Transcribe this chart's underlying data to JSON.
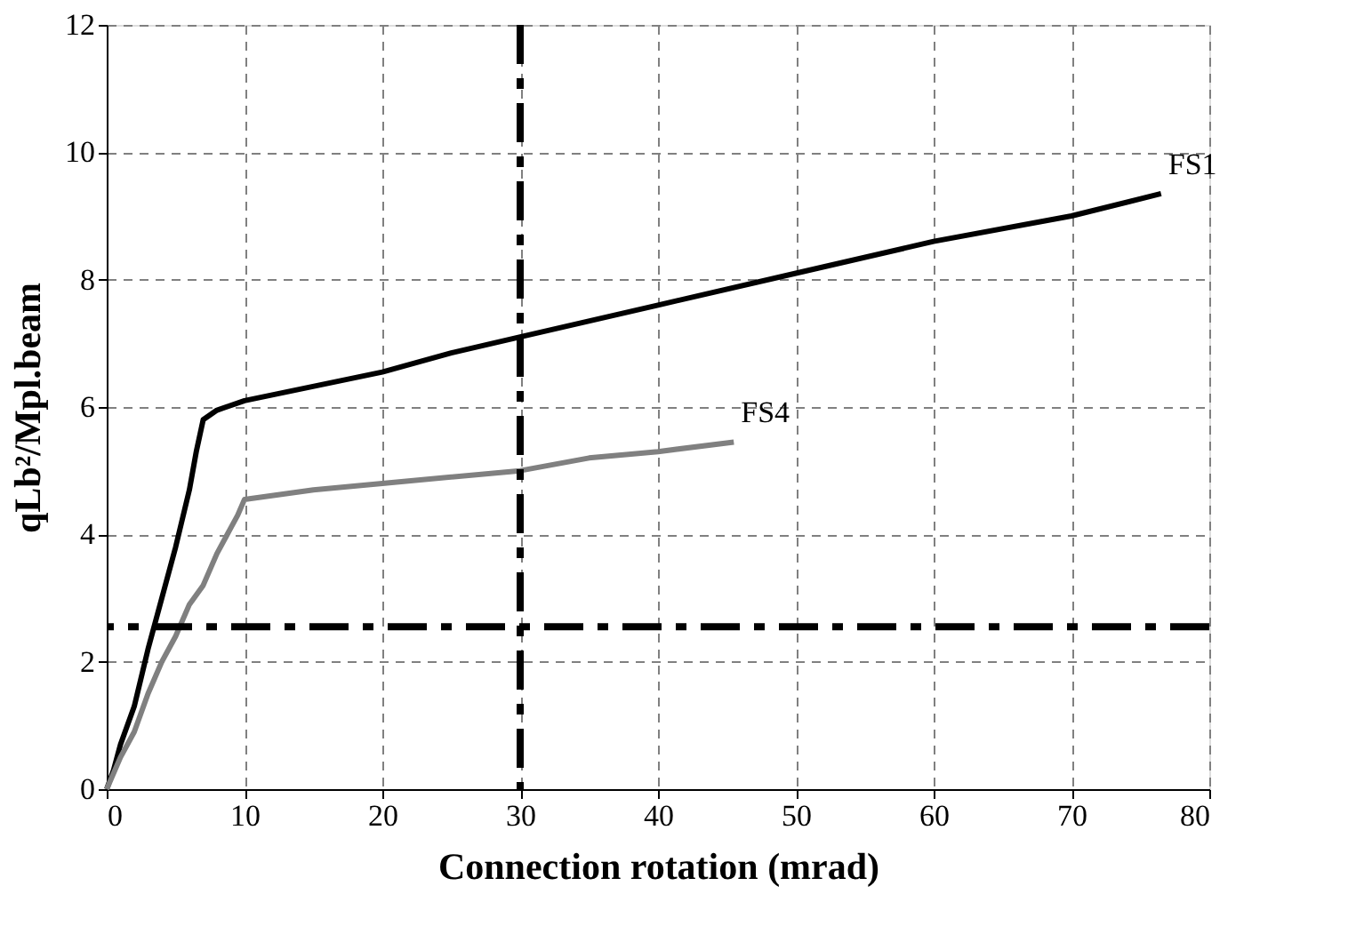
{
  "chart_data": {
    "type": "line",
    "xlabel": "Connection rotation (mrad)",
    "ylabel": "qLb²/Mpl.beam",
    "xlim": [
      0,
      80
    ],
    "xticks": [
      0,
      10,
      20,
      30,
      40,
      50,
      60,
      70,
      80
    ],
    "ylim": [
      0,
      12
    ],
    "yticks": [
      0,
      2,
      4,
      6,
      8,
      10,
      12
    ],
    "grid": true,
    "marker": "none",
    "line_style": "solid",
    "series": [
      {
        "name": "FS1",
        "color": "#000000",
        "x": [
          0,
          0.5,
          1,
          2,
          3,
          4,
          5,
          6,
          6.5,
          7,
          8,
          10,
          20,
          25,
          30,
          40,
          50,
          60,
          70,
          76.5
        ],
        "values": [
          0,
          0.3,
          0.7,
          1.3,
          2.2,
          3.0,
          3.8,
          4.7,
          5.3,
          5.8,
          5.95,
          6.1,
          6.55,
          6.85,
          7.1,
          7.6,
          8.1,
          8.6,
          9.0,
          9.35
        ]
      },
      {
        "name": "FS4",
        "color": "#808080",
        "x": [
          0,
          1,
          2,
          3,
          4,
          5,
          6,
          7,
          8,
          9,
          9.5,
          10,
          15,
          20,
          30,
          35,
          40,
          45.5
        ],
        "values": [
          0,
          0.5,
          0.9,
          1.5,
          2.0,
          2.4,
          2.9,
          3.2,
          3.7,
          4.1,
          4.3,
          4.55,
          4.7,
          4.8,
          5.0,
          5.2,
          5.3,
          5.45
        ]
      }
    ],
    "ref_lines": [
      {
        "axis": "x",
        "value": 30,
        "color": "#000000",
        "line_style": "dashed"
      },
      {
        "axis": "y",
        "value": 2.55,
        "color": "#000000",
        "line_style": "dashed"
      }
    ]
  }
}
